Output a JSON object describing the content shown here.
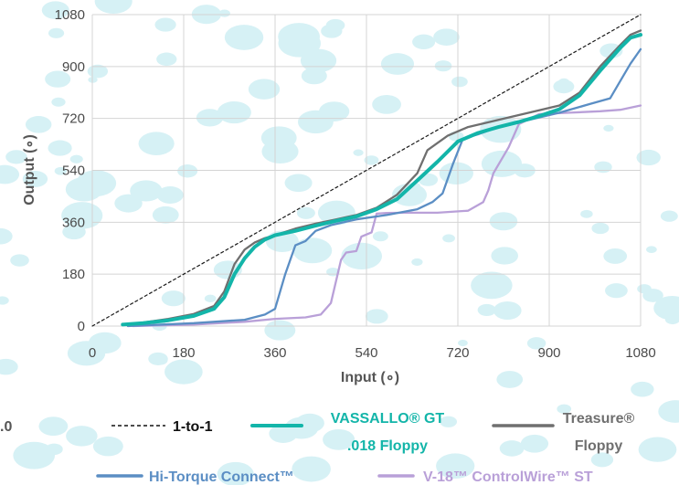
{
  "chart_data": {
    "type": "line",
    "title": "",
    "xlabel": "Input (∘)",
    "ylabel": "Output (∘)",
    "xlim": [
      0,
      1080
    ],
    "ylim": [
      0,
      1080
    ],
    "xticks": [
      "0",
      "180",
      "360",
      "540",
      "720",
      "900",
      "1080"
    ],
    "yticks": [
      "0",
      "180",
      "360",
      "540",
      "720",
      "900",
      "1080"
    ],
    "grid": "vertical and horizontal",
    "legend_position": "bottom",
    "cut_off_text": ".0",
    "series": [
      {
        "name": "1-to-1",
        "color": "#1a1a1a",
        "style": "dashed",
        "points": [
          [
            0,
            0
          ],
          [
            1080,
            1080
          ]
        ]
      },
      {
        "name": "VASSALLO® GT .018 Floppy",
        "color": "#13b5a9",
        "style": "thick",
        "points": [
          [
            60,
            5
          ],
          [
            100,
            10
          ],
          [
            150,
            20
          ],
          [
            200,
            35
          ],
          [
            240,
            60
          ],
          [
            260,
            100
          ],
          [
            280,
            180
          ],
          [
            300,
            235
          ],
          [
            320,
            275
          ],
          [
            340,
            300
          ],
          [
            360,
            315
          ],
          [
            400,
            330
          ],
          [
            440,
            348
          ],
          [
            480,
            365
          ],
          [
            520,
            380
          ],
          [
            560,
            405
          ],
          [
            600,
            440
          ],
          [
            640,
            505
          ],
          [
            680,
            570
          ],
          [
            720,
            640
          ],
          [
            760,
            670
          ],
          [
            800,
            690
          ],
          [
            840,
            708
          ],
          [
            880,
            728
          ],
          [
            920,
            752
          ],
          [
            960,
            800
          ],
          [
            1000,
            885
          ],
          [
            1040,
            965
          ],
          [
            1060,
            1000
          ],
          [
            1080,
            1010
          ]
        ]
      },
      {
        "name": "Treasure® Floppy",
        "color": "#6f6f6f",
        "style": "normal",
        "points": [
          [
            60,
            5
          ],
          [
            100,
            12
          ],
          [
            150,
            25
          ],
          [
            200,
            42
          ],
          [
            240,
            70
          ],
          [
            260,
            120
          ],
          [
            280,
            215
          ],
          [
            300,
            265
          ],
          [
            320,
            290
          ],
          [
            340,
            305
          ],
          [
            360,
            315
          ],
          [
            400,
            338
          ],
          [
            440,
            355
          ],
          [
            480,
            370
          ],
          [
            520,
            385
          ],
          [
            560,
            410
          ],
          [
            600,
            455
          ],
          [
            640,
            530
          ],
          [
            660,
            610
          ],
          [
            700,
            660
          ],
          [
            740,
            690
          ],
          [
            800,
            715
          ],
          [
            860,
            740
          ],
          [
            920,
            765
          ],
          [
            960,
            810
          ],
          [
            1000,
            900
          ],
          [
            1040,
            975
          ],
          [
            1060,
            1010
          ],
          [
            1080,
            1025
          ]
        ]
      },
      {
        "name": "Hi-Torque Connect™",
        "color": "#5b8ec4",
        "style": "normal",
        "points": [
          [
            70,
            0
          ],
          [
            200,
            10
          ],
          [
            300,
            22
          ],
          [
            340,
            40
          ],
          [
            360,
            60
          ],
          [
            380,
            180
          ],
          [
            400,
            280
          ],
          [
            420,
            295
          ],
          [
            440,
            330
          ],
          [
            470,
            350
          ],
          [
            520,
            370
          ],
          [
            580,
            385
          ],
          [
            640,
            405
          ],
          [
            670,
            430
          ],
          [
            690,
            460
          ],
          [
            710,
            560
          ],
          [
            730,
            650
          ],
          [
            760,
            665
          ],
          [
            800,
            690
          ],
          [
            860,
            715
          ],
          [
            920,
            740
          ],
          [
            980,
            770
          ],
          [
            1020,
            790
          ],
          [
            1040,
            850
          ],
          [
            1060,
            910
          ],
          [
            1080,
            960
          ]
        ]
      },
      {
        "name": "V-18™ ControlWire™ ST",
        "color": "#b9a0d8",
        "style": "normal",
        "points": [
          [
            80,
            0
          ],
          [
            200,
            5
          ],
          [
            300,
            15
          ],
          [
            360,
            25
          ],
          [
            420,
            30
          ],
          [
            450,
            40
          ],
          [
            470,
            80
          ],
          [
            490,
            230
          ],
          [
            500,
            255
          ],
          [
            520,
            260
          ],
          [
            530,
            310
          ],
          [
            550,
            325
          ],
          [
            560,
            390
          ],
          [
            580,
            392
          ],
          [
            620,
            393
          ],
          [
            680,
            393
          ],
          [
            740,
            400
          ],
          [
            770,
            430
          ],
          [
            780,
            470
          ],
          [
            790,
            530
          ],
          [
            820,
            620
          ],
          [
            840,
            700
          ],
          [
            880,
            735
          ],
          [
            940,
            740
          ],
          [
            1000,
            745
          ],
          [
            1040,
            750
          ],
          [
            1080,
            765
          ]
        ]
      }
    ]
  },
  "legend": [
    {
      "label": "1-to-1",
      "color": "#111111"
    },
    {
      "label_line1": "VASSALLO® GT",
      "label_line2": ".018 Floppy",
      "color": "#13b5a9"
    },
    {
      "label_line1": "Treasure®",
      "label_line2": "Floppy",
      "color": "#6f6f6f"
    },
    {
      "label": "Hi-Torque Connect™",
      "color": "#5b8ec4"
    },
    {
      "label": "V-18™ ControlWire™ ST",
      "color": "#b9a0d8"
    }
  ],
  "colors": {
    "grid": "#d4d4d4",
    "background_dot": "#d6f1f5",
    "text": "#4a4a4a"
  }
}
